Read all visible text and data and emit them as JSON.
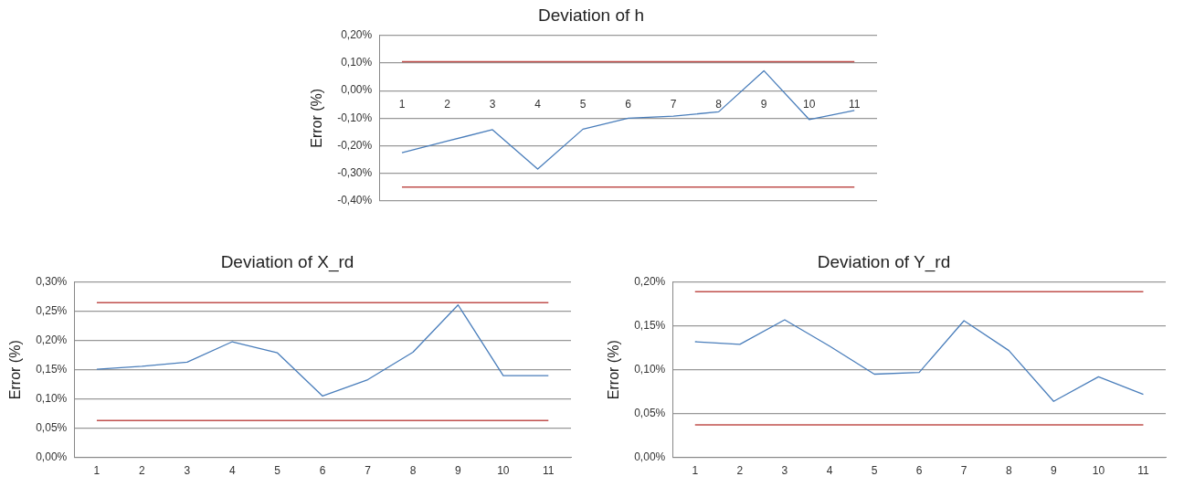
{
  "chart_data": [
    {
      "type": "line",
      "title": "Deviation of h",
      "ylabel": "Error (%)",
      "categories": [
        "1",
        "2",
        "3",
        "4",
        "5",
        "6",
        "7",
        "8",
        "9",
        "10",
        "11"
      ],
      "series": [
        {
          "color": "#4a7ebb",
          "values": [
            -0.225,
            -0.183,
            -0.142,
            -0.285,
            -0.14,
            -0.1,
            -0.093,
            -0.077,
            0.072,
            -0.105,
            -0.072
          ]
        }
      ],
      "ylim": [
        -0.4,
        0.2
      ],
      "yticks": [
        {
          "value": -0.4,
          "label": "-0,40%"
        },
        {
          "value": -0.3,
          "label": "-0,30%"
        },
        {
          "value": -0.2,
          "label": "-0,20%"
        },
        {
          "value": -0.1,
          "label": "-0,10%"
        },
        {
          "value": 0,
          "label": "0,00%"
        },
        {
          "value": 0.1,
          "label": "0,10%"
        },
        {
          "value": 0.2,
          "label": "0,20%"
        }
      ],
      "ref_lines": [
        {
          "axis": "y",
          "value": 0.105,
          "color": "#c0504d"
        },
        {
          "axis": "y",
          "value": -0.35,
          "color": "#c0504d"
        }
      ],
      "grid": "y",
      "legend": false,
      "marker": "none",
      "line_style": "solid"
    },
    {
      "type": "line",
      "title": "Deviation of X_rd",
      "ylabel": "Error (%)",
      "categories": [
        "1",
        "2",
        "3",
        "4",
        "5",
        "6",
        "7",
        "8",
        "9",
        "10",
        "11"
      ],
      "series": [
        {
          "color": "#4a7ebb",
          "values": [
            0.151,
            0.156,
            0.163,
            0.198,
            0.179,
            0.105,
            0.133,
            0.18,
            0.261,
            0.14,
            0.14
          ]
        }
      ],
      "ylim": [
        0,
        0.3
      ],
      "yticks": [
        {
          "value": 0,
          "label": "0,00%"
        },
        {
          "value": 0.05,
          "label": "0,05%"
        },
        {
          "value": 0.1,
          "label": "0,10%"
        },
        {
          "value": 0.15,
          "label": "0,15%"
        },
        {
          "value": 0.2,
          "label": "0,20%"
        },
        {
          "value": 0.25,
          "label": "0,25%"
        },
        {
          "value": 0.3,
          "label": "0,30%"
        }
      ],
      "ref_lines": [
        {
          "axis": "y",
          "value": 0.265,
          "color": "#c0504d"
        },
        {
          "axis": "y",
          "value": 0.063,
          "color": "#c0504d"
        }
      ],
      "grid": "y",
      "legend": false,
      "marker": "none",
      "line_style": "solid"
    },
    {
      "type": "line",
      "title": "Deviation of Y_rd",
      "ylabel": "Error (%)",
      "categories": [
        "1",
        "2",
        "3",
        "4",
        "5",
        "6",
        "7",
        "8",
        "9",
        "10",
        "11"
      ],
      "series": [
        {
          "color": "#4a7ebb",
          "values": [
            0.132,
            0.129,
            0.157,
            0.127,
            0.095,
            0.097,
            0.156,
            0.122,
            0.064,
            0.092,
            0.072
          ]
        }
      ],
      "ylim": [
        0,
        0.2
      ],
      "yticks": [
        {
          "value": 0,
          "label": "0,00%"
        },
        {
          "value": 0.05,
          "label": "0,05%"
        },
        {
          "value": 0.1,
          "label": "0,10%"
        },
        {
          "value": 0.15,
          "label": "0,15%"
        },
        {
          "value": 0.2,
          "label": "0,20%"
        }
      ],
      "ref_lines": [
        {
          "axis": "y",
          "value": 0.189,
          "color": "#c0504d"
        },
        {
          "axis": "y",
          "value": 0.037,
          "color": "#c0504d"
        }
      ],
      "grid": "y",
      "legend": false,
      "marker": "none",
      "line_style": "solid"
    }
  ]
}
